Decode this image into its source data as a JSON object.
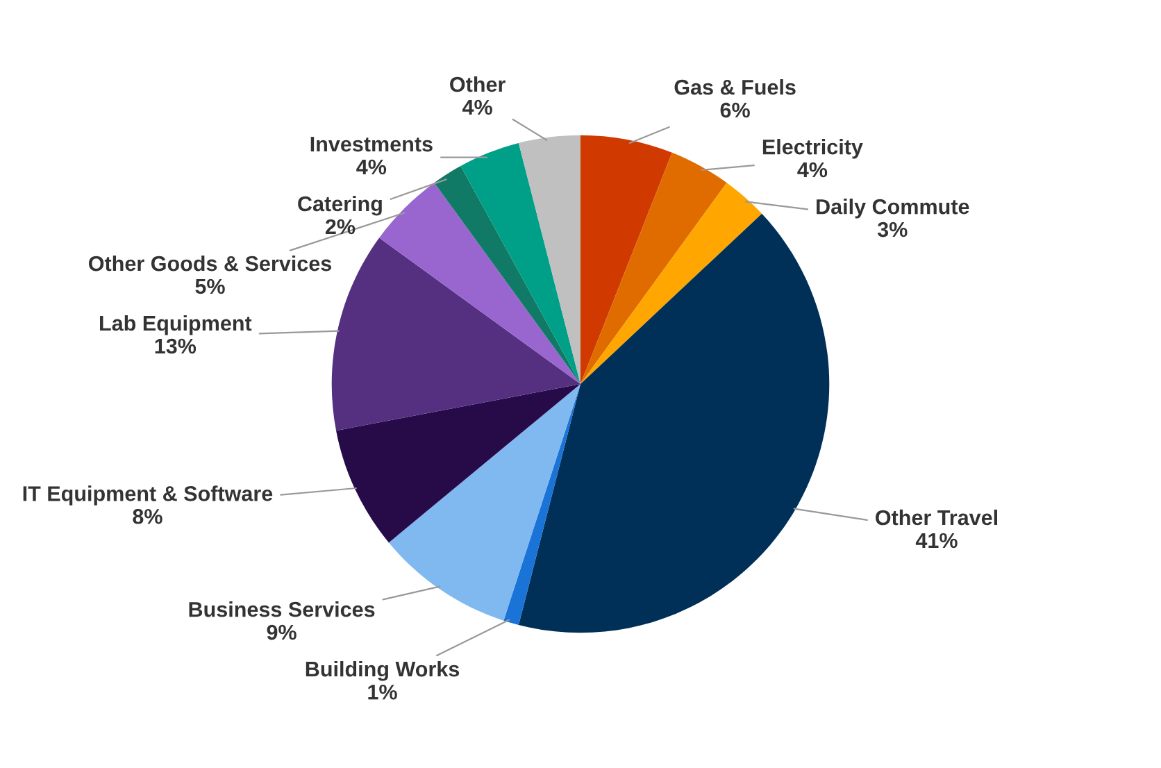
{
  "chart_data": {
    "type": "pie",
    "categories": [
      "Gas & Fuels",
      "Electricity",
      "Daily Commute",
      "Other Travel",
      "Building Works",
      "Business Services",
      "IT Equipment & Software",
      "Lab Equipment",
      "Other Goods & Services",
      "Catering",
      "Investments",
      "Other"
    ],
    "values": [
      6,
      4,
      3,
      41,
      1,
      9,
      8,
      13,
      5,
      2,
      4,
      4
    ],
    "colors": [
      "#d03a00",
      "#e06c00",
      "#ffa600",
      "#003058",
      "#1a73d6",
      "#80b8f0",
      "#270a48",
      "#553080",
      "#9966d0",
      "#107a66",
      "#00a088",
      "#c0c0c0"
    ],
    "value_labels": [
      "6%",
      "4%",
      "3%",
      "41%",
      "1%",
      "9%",
      "8%",
      "13%",
      "5%",
      "2%",
      "4%",
      "4%"
    ]
  }
}
